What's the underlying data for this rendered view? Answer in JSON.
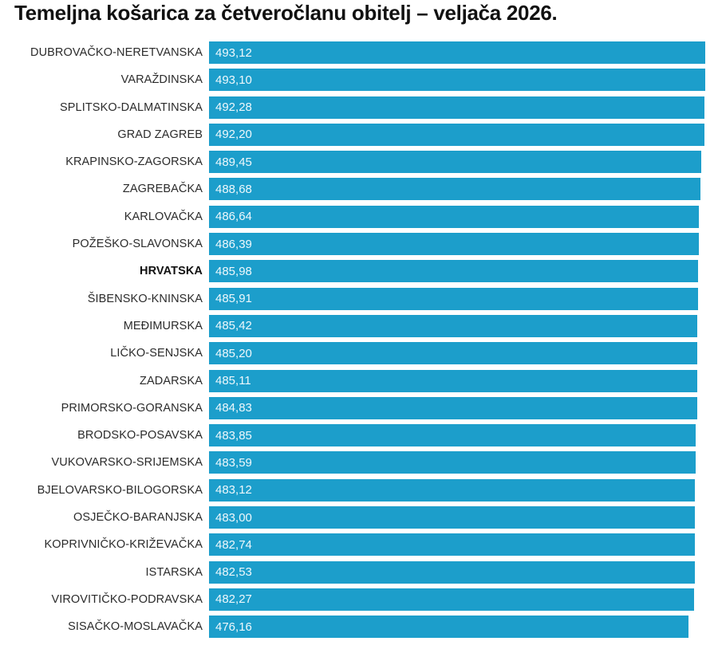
{
  "title": "Temeljna košarica za četveročlanu obitelj – veljača 2026.",
  "chart_data": {
    "type": "bar",
    "orientation": "horizontal",
    "title": "Temeljna košarica za četveročlanu obitelj – veljača 2026.",
    "xlabel": "",
    "ylabel": "",
    "xlim": [
      0,
      493.12
    ],
    "grid": false,
    "legend": false,
    "bar_color": "#1c9ecb",
    "value_label_color": "#eef8fc",
    "highlight_category": "HRVATSKA",
    "categories": [
      "DUBROVAČKO-NERETVANSKA",
      "VARAŽDINSKA",
      "SPLITSKO-DALMATINSKA",
      "GRAD ZAGREB",
      "KRAPINSKO-ZAGORSKA",
      "ZAGREBAČKA",
      "KARLOVAČKA",
      "POŽEŠKO-SLAVONSKA",
      "HRVATSKA",
      "ŠIBENSKO-KNINSKA",
      "MEĐIMURSKA",
      "LIČKO-SENJSKA",
      "ZADARSKA",
      "PRIMORSKO-GORANSKA",
      "BRODSKO-POSAVSKA",
      "VUKOVARSKO-SRIJEMSKA",
      "BJELOVARSKO-BILOGORSKA",
      "OSJEČKO-BARANJSKA",
      "KOPRIVNIČKO-KRIŽEVAČKA",
      "ISTARSKA",
      "VIROVITIČKO-PODRAVSKA",
      "SISAČKO-MOSLAVAČKA"
    ],
    "values": [
      493.12,
      493.1,
      492.28,
      492.2,
      489.45,
      488.68,
      486.64,
      486.39,
      485.98,
      485.91,
      485.42,
      485.2,
      485.11,
      484.83,
      483.85,
      483.59,
      483.12,
      483.0,
      482.74,
      482.53,
      482.27,
      476.16
    ],
    "value_labels": [
      "493,12",
      "493,10",
      "492,28",
      "492,20",
      "489,45",
      "488,68",
      "486,64",
      "486,39",
      "485,98",
      "485,91",
      "485,42",
      "485,20",
      "485,11",
      "484,83",
      "483,85",
      "483,59",
      "483,12",
      "483,00",
      "482,74",
      "482,53",
      "482,27",
      "476,16"
    ]
  }
}
